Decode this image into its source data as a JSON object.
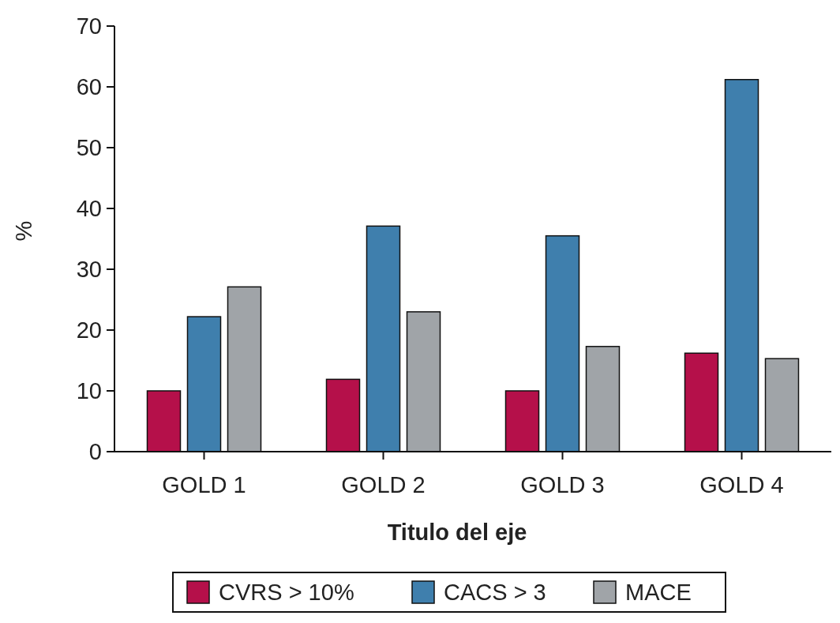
{
  "chart_data": {
    "type": "bar",
    "xlabel": "Titulo del eje",
    "ylabel": "%",
    "categories": [
      "GOLD 1",
      "GOLD 2",
      "GOLD 3",
      "GOLD 4"
    ],
    "series": [
      {
        "name": "CVRS > 10%",
        "color": "#b5104a",
        "values": [
          10,
          11.9,
          10,
          16.2
        ]
      },
      {
        "name": "CACS > 3",
        "color": "#3f7fad",
        "values": [
          22.2,
          37.1,
          35.5,
          61.2
        ]
      },
      {
        "name": "MACE",
        "color": "#a0a4a8",
        "values": [
          27.1,
          23,
          17.3,
          15.3
        ]
      }
    ],
    "ylim": [
      0,
      70
    ],
    "yticks": [
      0,
      10,
      20,
      30,
      40,
      50,
      60,
      70
    ],
    "grid": false,
    "legend": "bottom"
  }
}
